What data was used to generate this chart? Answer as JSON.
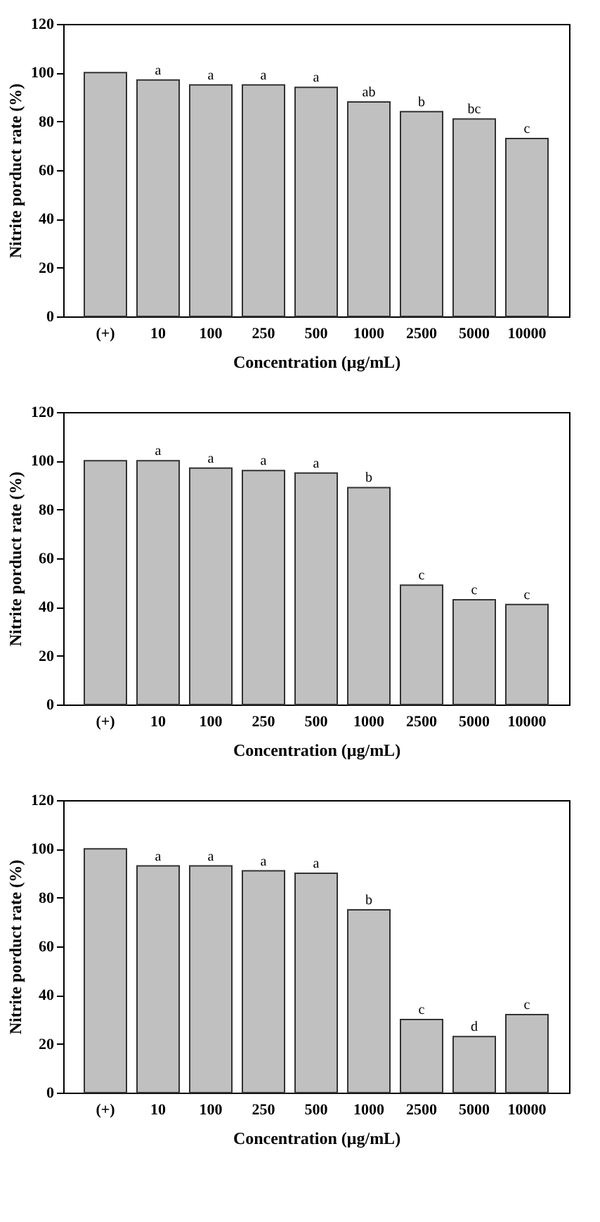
{
  "chart_data": [
    {
      "type": "bar",
      "xlabel": "Concentration (μg/mL)",
      "ylabel": "Nitrite porduct rate (%)",
      "categories": [
        "(+)",
        "10",
        "100",
        "250",
        "500",
        "1000",
        "2500",
        "5000",
        "10000"
      ],
      "series": [
        {
          "color": "#c0c0c0",
          "values": [
            100,
            97,
            95,
            95,
            94,
            88,
            84,
            81,
            73
          ]
        }
      ],
      "annotations": [
        {
          "text": "a",
          "x": "10",
          "y": 97
        },
        {
          "text": "a",
          "x": "100",
          "y": 95
        },
        {
          "text": "a",
          "x": "250",
          "y": 95
        },
        {
          "text": "a",
          "x": "500",
          "y": 94
        },
        {
          "text": "ab",
          "x": "1000",
          "y": 88
        },
        {
          "text": "b",
          "x": "2500",
          "y": 84
        },
        {
          "text": "bc",
          "x": "5000",
          "y": 81
        },
        {
          "text": "c",
          "x": "10000",
          "y": 73
        }
      ],
      "ylim": [
        0,
        120
      ],
      "yticks": [
        0,
        20,
        40,
        60,
        80,
        100,
        120
      ],
      "grid": false
    },
    {
      "type": "bar",
      "xlabel": "Concentration (μg/mL)",
      "ylabel": "Nitrite porduct rate (%)",
      "categories": [
        "(+)",
        "10",
        "100",
        "250",
        "500",
        "1000",
        "2500",
        "5000",
        "10000"
      ],
      "series": [
        {
          "color": "#c0c0c0",
          "values": [
            100,
            100,
            97,
            96,
            95,
            89,
            49,
            43,
            41
          ]
        }
      ],
      "annotations": [
        {
          "text": "a",
          "x": "10",
          "y": 100
        },
        {
          "text": "a",
          "x": "100",
          "y": 97
        },
        {
          "text": "a",
          "x": "250",
          "y": 96
        },
        {
          "text": "a",
          "x": "500",
          "y": 95
        },
        {
          "text": "b",
          "x": "1000",
          "y": 89
        },
        {
          "text": "c",
          "x": "2500",
          "y": 49
        },
        {
          "text": "c",
          "x": "5000",
          "y": 43
        },
        {
          "text": "c",
          "x": "10000",
          "y": 41
        }
      ],
      "ylim": [
        0,
        120
      ],
      "yticks": [
        0,
        20,
        40,
        60,
        80,
        100,
        120
      ],
      "grid": false
    },
    {
      "type": "bar",
      "xlabel": "Concentration (μg/mL)",
      "ylabel": "Nitrite porduct rate (%)",
      "categories": [
        "(+)",
        "10",
        "100",
        "250",
        "500",
        "1000",
        "2500",
        "5000",
        "10000"
      ],
      "series": [
        {
          "color": "#c0c0c0",
          "values": [
            100,
            93,
            93,
            91,
            90,
            75,
            30,
            23,
            32
          ]
        }
      ],
      "annotations": [
        {
          "text": "a",
          "x": "10",
          "y": 93
        },
        {
          "text": "a",
          "x": "100",
          "y": 93
        },
        {
          "text": "a",
          "x": "250",
          "y": 91
        },
        {
          "text": "a",
          "x": "500",
          "y": 90
        },
        {
          "text": "b",
          "x": "1000",
          "y": 75
        },
        {
          "text": "c",
          "x": "2500",
          "y": 30
        },
        {
          "text": "d",
          "x": "5000",
          "y": 23
        },
        {
          "text": "c",
          "x": "10000",
          "y": 32
        }
      ],
      "ylim": [
        0,
        120
      ],
      "yticks": [
        0,
        20,
        40,
        60,
        80,
        100,
        120
      ],
      "grid": false
    }
  ]
}
